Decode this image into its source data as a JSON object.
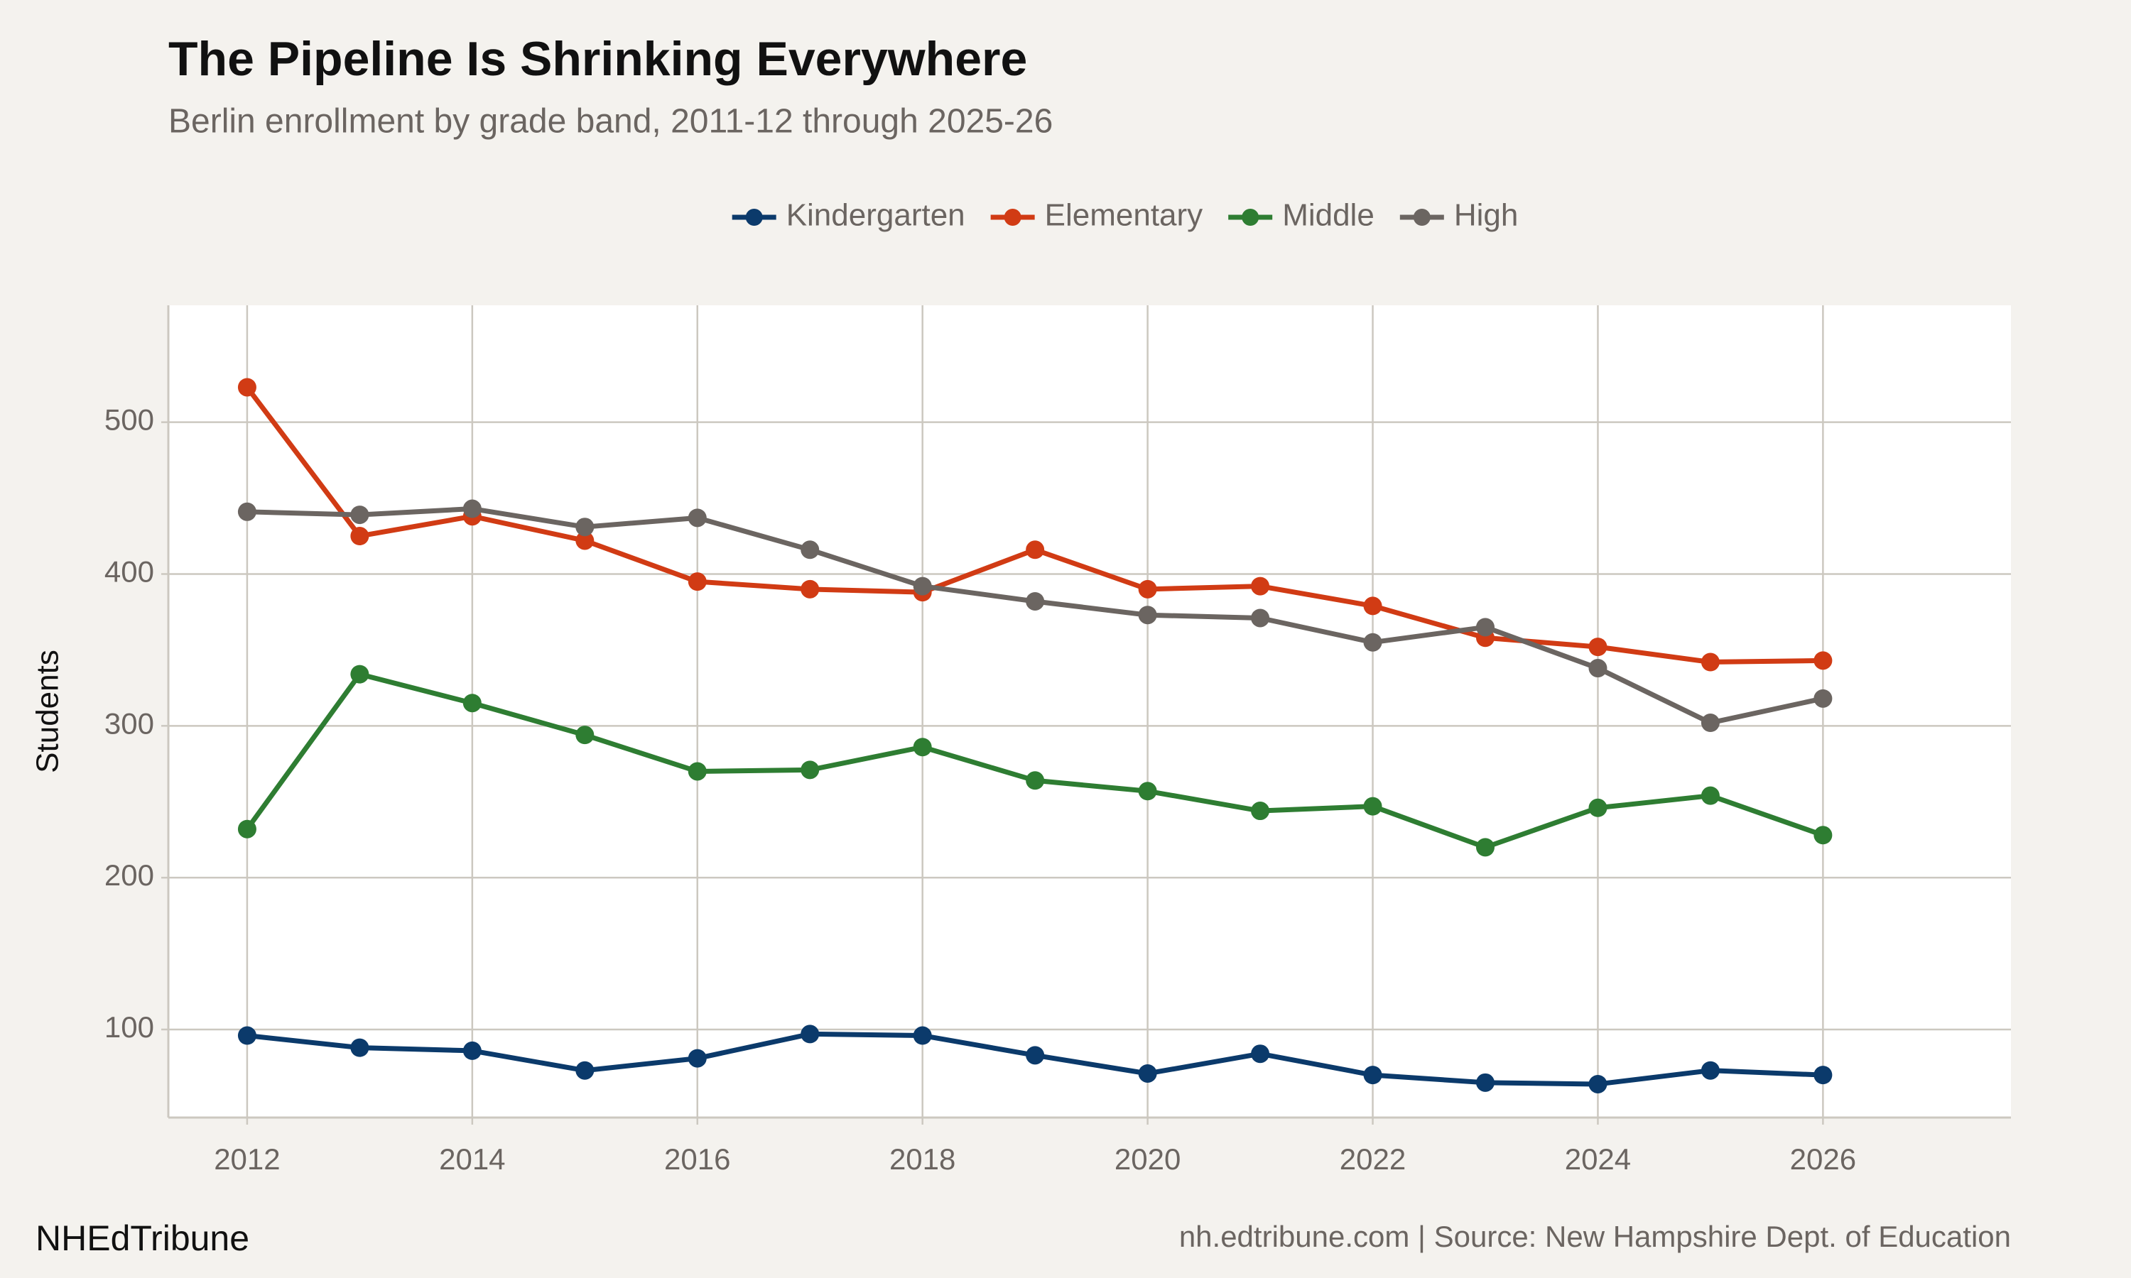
{
  "chart_data": {
    "type": "line",
    "title": "The Pipeline Is Shrinking Everywhere",
    "subtitle": "Berlin enrollment by grade band, 2011-12 through 2025-26",
    "y_label": "Students",
    "brand": "NHEdTribune",
    "source": "nh.edtribune.com | Source: New Hampshire Dept. of Education",
    "x": [
      2012,
      2013,
      2014,
      2015,
      2016,
      2017,
      2018,
      2019,
      2020,
      2021,
      2022,
      2023,
      2024,
      2025,
      2026
    ],
    "series": [
      {
        "name": "Kindergarten",
        "color": "#0b3a6b",
        "values": [
          96,
          88,
          86,
          73,
          81,
          97,
          96,
          83,
          71,
          84,
          70,
          65,
          64,
          73,
          70
        ]
      },
      {
        "name": "Elementary",
        "color": "#d13b14",
        "values": [
          523,
          425,
          438,
          422,
          395,
          390,
          388,
          416,
          390,
          392,
          379,
          358,
          352,
          342,
          343
        ]
      },
      {
        "name": "Middle",
        "color": "#2e7d32",
        "values": [
          232,
          334,
          315,
          294,
          270,
          271,
          286,
          264,
          257,
          244,
          247,
          220,
          246,
          254,
          228
        ]
      },
      {
        "name": "High",
        "color": "#6b6561",
        "values": [
          441,
          439,
          443,
          431,
          437,
          416,
          392,
          382,
          373,
          371,
          355,
          365,
          338,
          302,
          318
        ]
      }
    ],
    "xlim": [
      2011.3,
      2027.67
    ],
    "xticks": [
      2012,
      2014,
      2016,
      2018,
      2020,
      2022,
      2024,
      2026
    ],
    "ylim": [
      42,
      577
    ],
    "yticks": [
      100,
      200,
      300,
      400,
      500
    ],
    "grid": true,
    "legend": "top"
  }
}
